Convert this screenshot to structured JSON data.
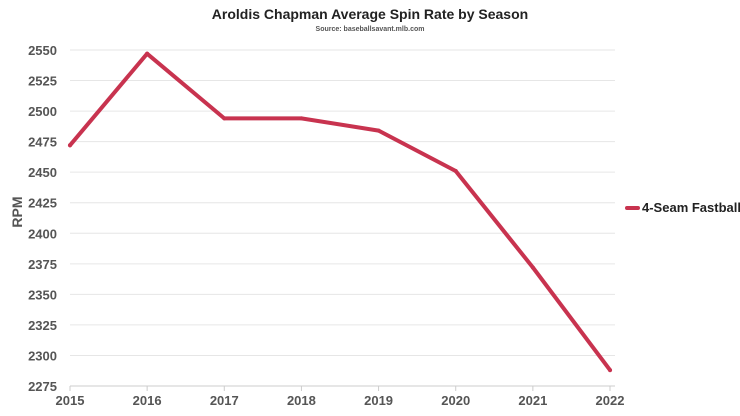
{
  "chart_data": {
    "type": "line",
    "title": "Aroldis Chapman Average Spin Rate by Season",
    "subtitle": "Source: baseballsavant.mlb.com",
    "xlabel": "",
    "ylabel": "RPM",
    "x": [
      "2015",
      "2016",
      "2017",
      "2018",
      "2019",
      "2020",
      "2021",
      "2022"
    ],
    "series": [
      {
        "name": "4-Seam Fastball",
        "color": "#c8334f",
        "values": [
          2472,
          2547,
          2494,
          2494,
          2484,
          2451,
          2372,
          2288
        ]
      }
    ],
    "ylim": [
      2275,
      2550
    ],
    "yticks": [
      2275,
      2300,
      2325,
      2350,
      2375,
      2400,
      2425,
      2450,
      2475,
      2500,
      2525,
      2550
    ],
    "grid": true,
    "legend": "right"
  }
}
